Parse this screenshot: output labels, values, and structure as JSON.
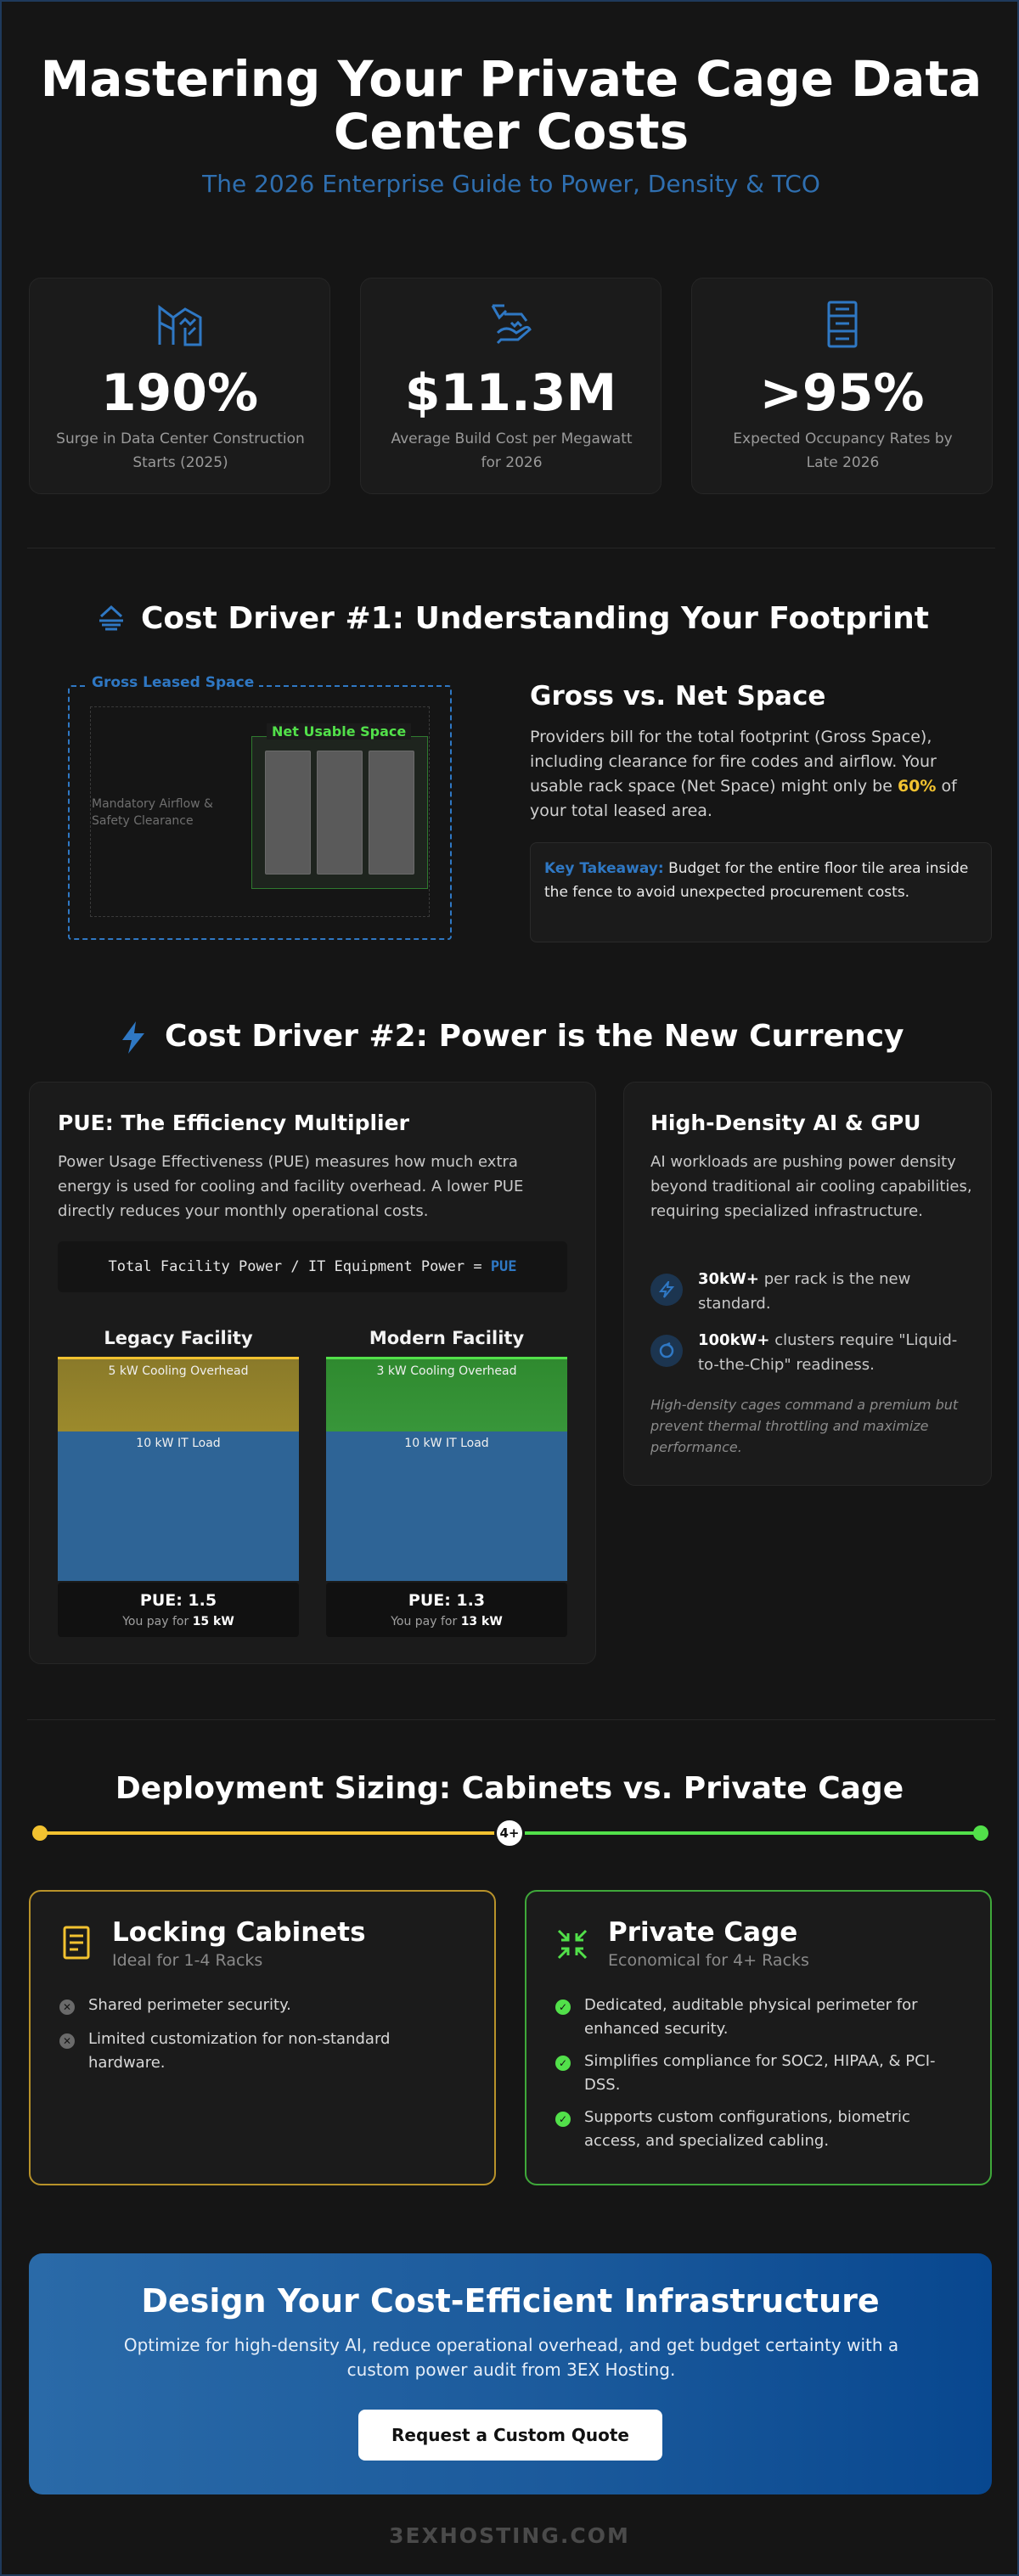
{
  "hero": {
    "title": "Mastering Your Private Cage Data Center Costs",
    "subtitle": "The 2026 Enterprise Guide to Power, Density & TCO"
  },
  "stats": [
    {
      "icon": "construction-crane-icon",
      "value": "190%",
      "label": "Surge in Data Center Construction Starts (2025)"
    },
    {
      "icon": "money-hand-icon",
      "value": "$11.3M",
      "label": "Average Build Cost per Megawatt for 2026"
    },
    {
      "icon": "server-rack-icon",
      "value": ">95%",
      "label": "Expected Occupancy Rates by Late 2026"
    }
  ],
  "footprint": {
    "heading": "Cost Driver #1: Understanding Your Footprint",
    "diagram": {
      "gross_label": "Gross Leased Space",
      "net_label": "Net Usable Space",
      "airflow_label": "Mandatory Airflow & Safety Clearance"
    },
    "gvn_title": "Gross vs. Net Space",
    "gvn_body_pre": "Providers bill for the total footprint (Gross Space), including clearance for fire codes and airflow. Your usable rack space (Net Space) might only be ",
    "gvn_highlight": "60%",
    "gvn_body_post": " of your total leased area.",
    "takeaway_label": "Key Takeaway:",
    "takeaway_text": " Budget for the entire floor tile area inside the fence to avoid unexpected procurement costs."
  },
  "power": {
    "heading": "Cost Driver #2: Power is the New Currency",
    "pue_title": "PUE: The Efficiency Multiplier",
    "pue_body": "Power Usage Effectiveness (PUE) measures how much extra energy is used for cooling and facility overhead. A lower PUE directly reduces your monthly operational costs.",
    "formula_text": "Total Facility Power / IT Equipment Power = ",
    "formula_result": "PUE",
    "facilities": [
      {
        "name": "Legacy Facility",
        "cooling_kw": 5,
        "it_kw": 10,
        "cooling_label": "5 kW Cooling Overhead",
        "it_label": "10 kW IT Load",
        "pue": "PUE: 1.5",
        "pay_prefix": "You pay for ",
        "pay_value": "15 kW",
        "color": "#f2c230"
      },
      {
        "name": "Modern Facility",
        "cooling_kw": 3,
        "it_kw": 10,
        "cooling_label": "3 kW Cooling Overhead",
        "it_label": "10 kW IT Load",
        "pue": "PUE: 1.3",
        "pay_prefix": "You pay for ",
        "pay_value": "13 kW",
        "color": "#52e04a"
      }
    ],
    "hd_title": "High-Density AI & GPU",
    "hd_body": "AI workloads are pushing power density beyond traditional air cooling capabilities, requiring specialized infrastructure.",
    "hd_items": [
      {
        "icon": "lightning-icon",
        "bold": "30kW+",
        "text": " per rack is the new standard."
      },
      {
        "icon": "cooling-loop-icon",
        "bold": "100kW+",
        "text": " clusters require \"Liquid-to-the-Chip\" readiness."
      }
    ],
    "hd_note": "High-density cages command a premium but prevent thermal throttling and maximize performance."
  },
  "sizing": {
    "heading": "Deployment Sizing: Cabinets vs. Private Cage",
    "badge": "4+",
    "cabinets": {
      "title": "Locking Cabinets",
      "subtitle": "Ideal for 1-4 Racks",
      "items": [
        "Shared perimeter security.",
        "Limited customization for non-standard hardware."
      ]
    },
    "cage": {
      "title": "Private Cage",
      "subtitle": "Economical for 4+ Racks",
      "items": [
        "Dedicated, auditable physical perimeter for enhanced security.",
        "Simplifies compliance for SOC2, HIPAA, & PCI-DSS.",
        "Supports custom configurations, biometric access, and specialized cabling."
      ]
    }
  },
  "cta": {
    "title": "Design Your Cost-Efficient Infrastructure",
    "body": "Optimize for high-density AI, reduce operational overhead, and get budget certainty with a custom power audit from 3EX Hosting.",
    "button": "Request a Custom Quote"
  },
  "footer": "3EXHOSTING.COM",
  "colors": {
    "accent_blue": "#2f78c4",
    "accent_yellow": "#f2c230",
    "accent_green": "#52e04a",
    "background": "#151515"
  }
}
